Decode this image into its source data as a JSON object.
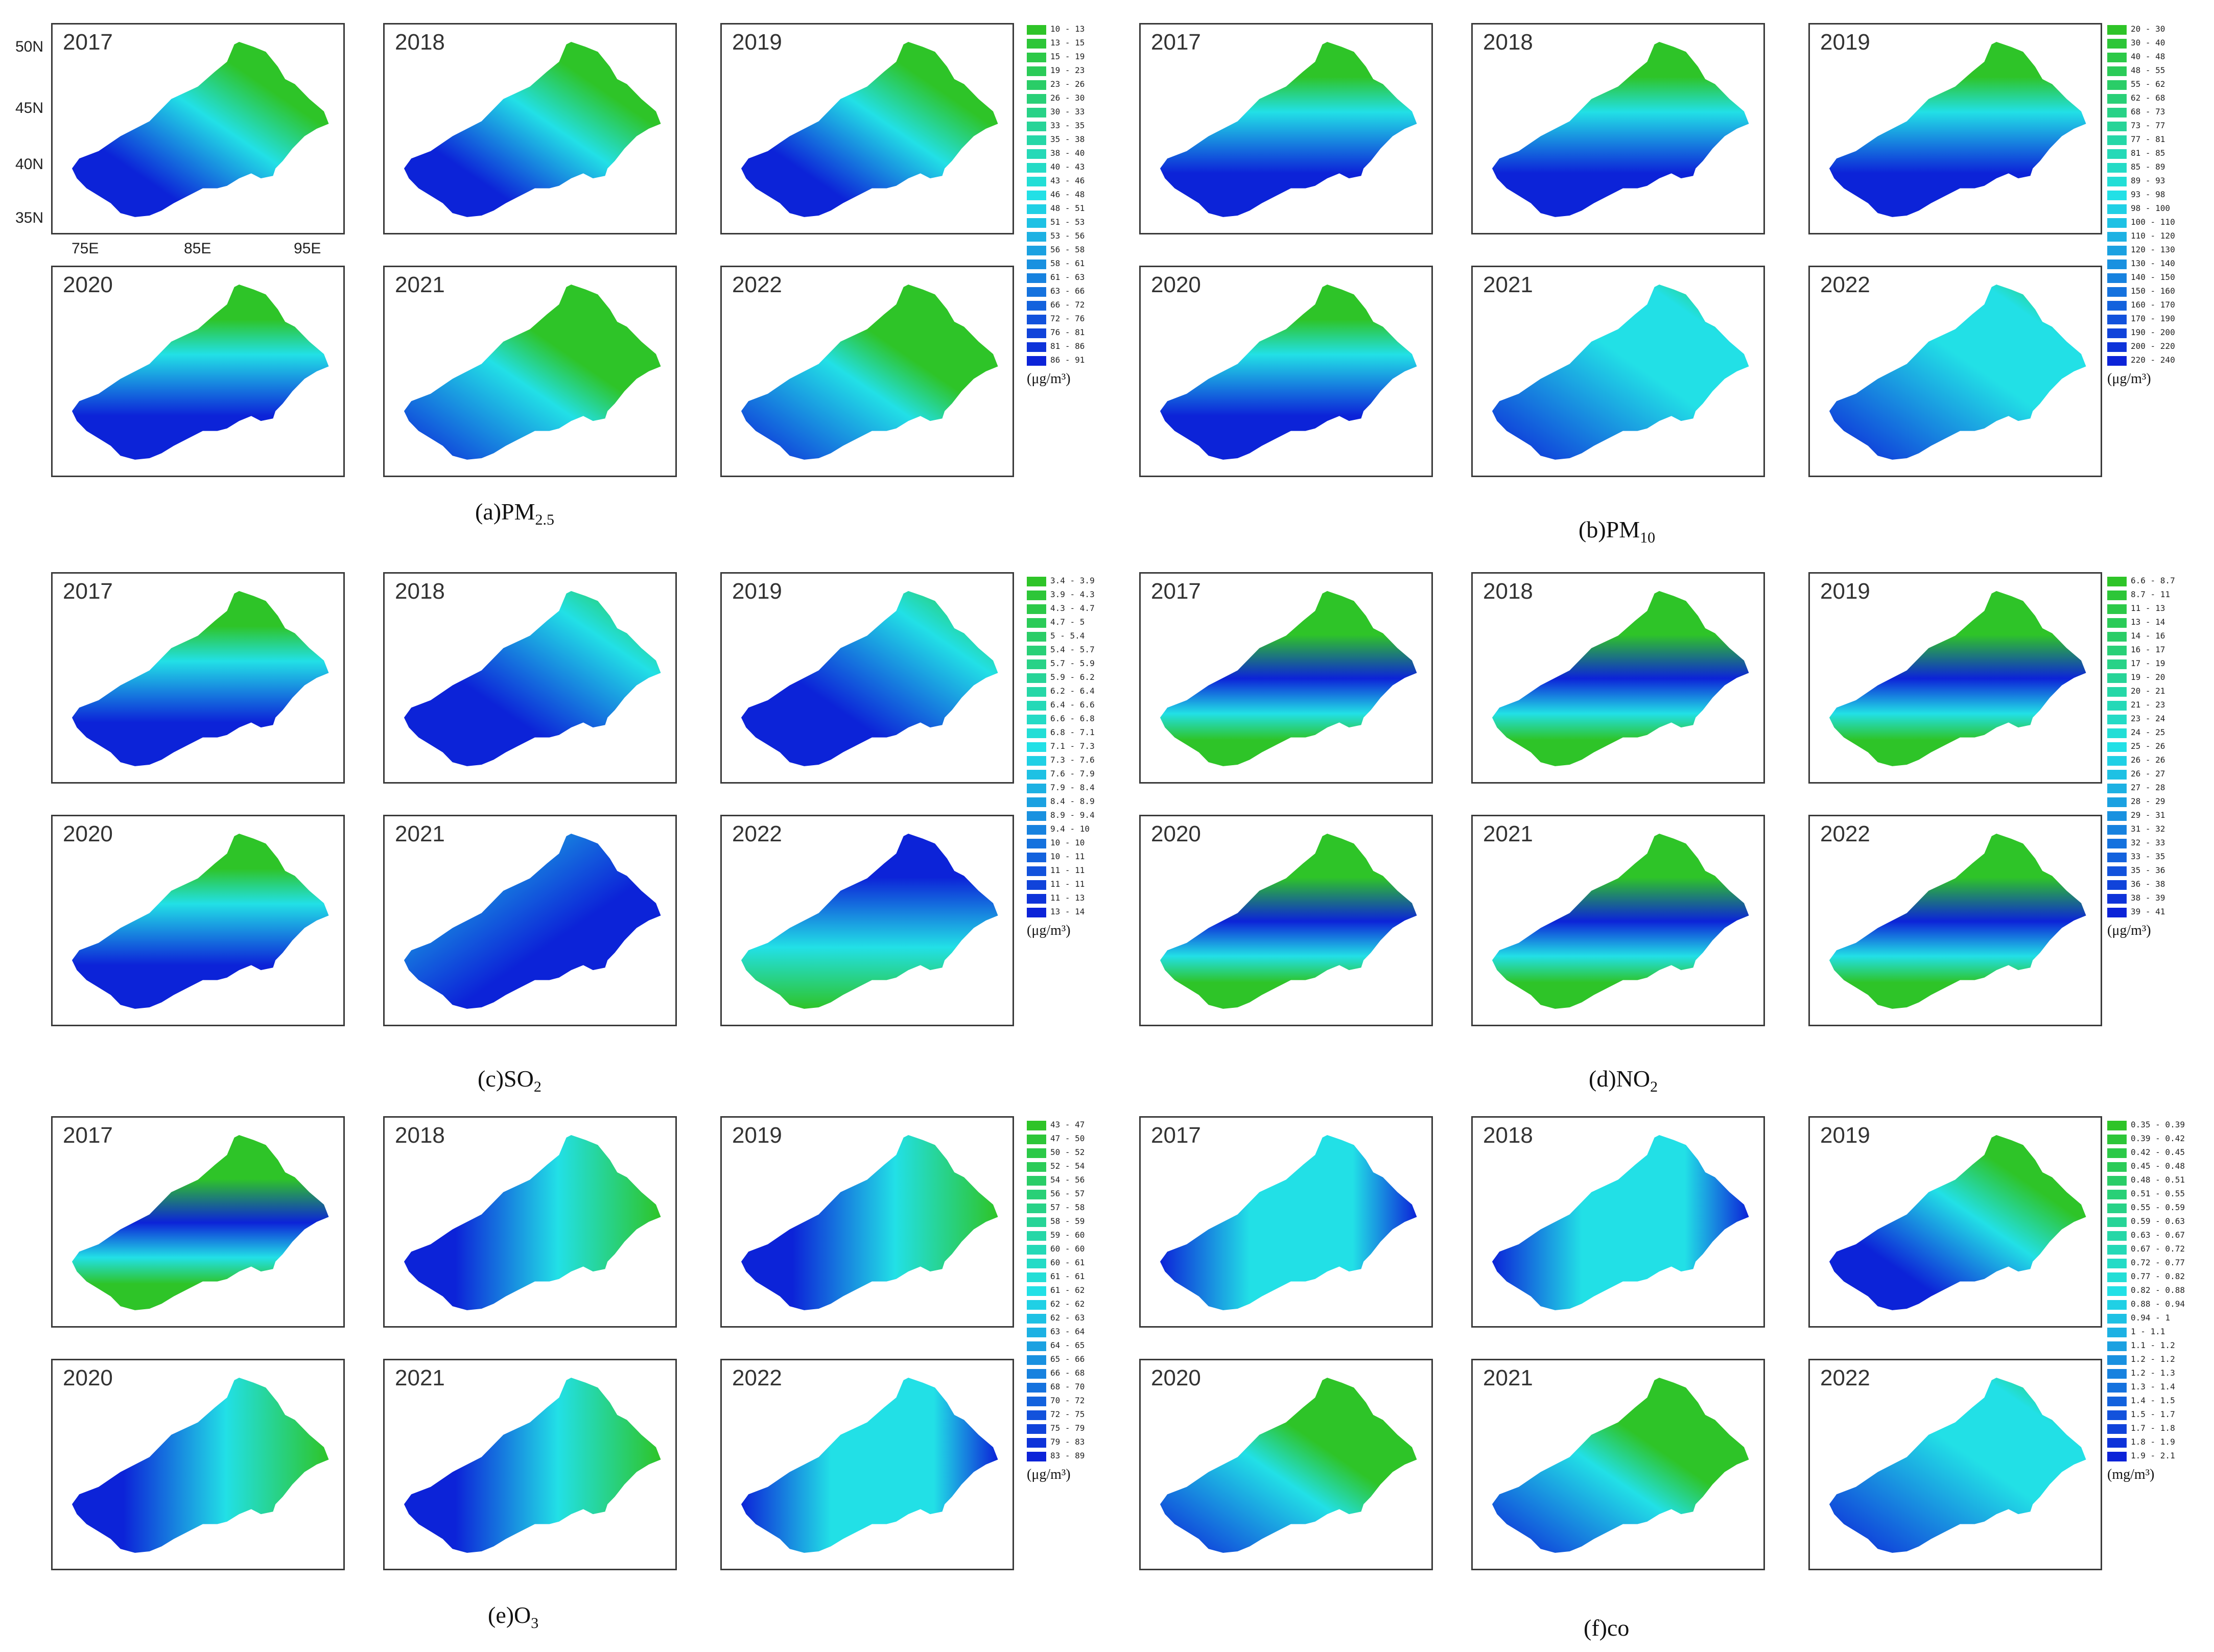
{
  "colors": {
    "green": "#2ec428",
    "cyan": "#22e0e6",
    "blue": "#0c23d8",
    "frame": "#3a3a3a"
  },
  "axes": {
    "lat": [
      "50N",
      "45N",
      "40N",
      "35N"
    ],
    "lon": [
      "75E",
      "85E",
      "95E"
    ]
  },
  "groups": [
    {
      "id": "a",
      "caption_prefix": "(a)PM",
      "caption_sub": "2.5",
      "unit": "(μg/m³)",
      "legend": [
        "10 - 13",
        "13 - 15",
        "15 - 19",
        "19 - 23",
        "23 - 26",
        "26 - 30",
        "30 - 33",
        "33 - 35",
        "35 - 38",
        "38 - 40",
        "40 - 43",
        "43 - 46",
        "46 - 48",
        "48 - 51",
        "51 - 53",
        "53 - 56",
        "56 - 58",
        "58 - 61",
        "61 - 63",
        "63 - 66",
        "66 - 72",
        "72 - 76",
        "76 - 81",
        "81 - 86",
        "86 - 91"
      ],
      "panels": [
        {
          "year": "2017",
          "pattern": "diag"
        },
        {
          "year": "2018",
          "pattern": "diag"
        },
        {
          "year": "2019",
          "pattern": "diag"
        },
        {
          "year": "2020",
          "pattern": "northsouth"
        },
        {
          "year": "2021",
          "pattern": "diagstrong"
        },
        {
          "year": "2022",
          "pattern": "diagstrong"
        }
      ]
    },
    {
      "id": "b",
      "caption_prefix": "(b)PM",
      "caption_sub": "10",
      "unit": "(μg/m³)",
      "legend": [
        "20 - 30",
        "30 - 40",
        "40 - 48",
        "48 - 55",
        "55 - 62",
        "62 - 68",
        "68 - 73",
        "73 - 77",
        "77 - 81",
        "81 - 85",
        "85 - 89",
        "89 - 93",
        "93 - 98",
        "98 - 100",
        "100 - 110",
        "110 - 120",
        "120 - 130",
        "130 - 140",
        "140 - 150",
        "150 - 160",
        "160 - 170",
        "170 - 190",
        "190 - 200",
        "200 - 220",
        "220 - 240"
      ],
      "panels": [
        {
          "year": "2017",
          "pattern": "northsouth"
        },
        {
          "year": "2018",
          "pattern": "northsouth"
        },
        {
          "year": "2019",
          "pattern": "northsouth"
        },
        {
          "year": "2020",
          "pattern": "northsouth"
        },
        {
          "year": "2021",
          "pattern": "southwest"
        },
        {
          "year": "2022",
          "pattern": "southwest"
        }
      ]
    },
    {
      "id": "c",
      "caption_prefix": "(c)SO",
      "caption_sub": "2",
      "unit": "(μg/m³)",
      "legend": [
        "3.4 - 3.9",
        "3.9 - 4.3",
        "4.3 - 4.7",
        "4.7 - 5",
        "5 - 5.4",
        "5.4 - 5.7",
        "5.7 - 5.9",
        "5.9 - 6.2",
        "6.2 - 6.4",
        "6.4 - 6.6",
        "6.6 - 6.8",
        "6.8 - 7.1",
        "7.1 - 7.3",
        "7.3 - 7.6",
        "7.6 - 7.9",
        "7.9 - 8.4",
        "8.4 - 8.9",
        "8.9 - 9.4",
        "9.4 - 10",
        "10 - 10",
        "10 - 11",
        "11 - 11",
        "11 - 11",
        "11 - 13",
        "13 - 14"
      ],
      "panels": [
        {
          "year": "2017",
          "pattern": "northsouth"
        },
        {
          "year": "2018",
          "pattern": "southblue"
        },
        {
          "year": "2019",
          "pattern": "southblue"
        },
        {
          "year": "2020",
          "pattern": "northsouth"
        },
        {
          "year": "2021",
          "pattern": "uniformblue"
        },
        {
          "year": "2022",
          "pattern": "southgreen"
        }
      ]
    },
    {
      "id": "d",
      "caption_prefix": "(d)NO",
      "caption_sub": "2",
      "unit": "(μg/m³)",
      "legend": [
        "6.6 - 8.7",
        "8.7 - 11",
        "11 - 13",
        "13 - 14",
        "14 - 16",
        "16 - 17",
        "17 - 19",
        "19 - 20",
        "20 - 21",
        "21 - 23",
        "23 - 24",
        "24 - 25",
        "25 - 26",
        "26 - 26",
        "26 - 27",
        "27 - 28",
        "28 - 29",
        "29 - 31",
        "31 - 32",
        "32 - 33",
        "33 - 35",
        "35 - 36",
        "36 - 38",
        "38 - 39",
        "39 - 41"
      ],
      "panels": [
        {
          "year": "2017",
          "pattern": "band"
        },
        {
          "year": "2018",
          "pattern": "band"
        },
        {
          "year": "2019",
          "pattern": "band"
        },
        {
          "year": "2020",
          "pattern": "band"
        },
        {
          "year": "2021",
          "pattern": "band"
        },
        {
          "year": "2022",
          "pattern": "band"
        }
      ]
    },
    {
      "id": "e",
      "caption_prefix": "(e)O",
      "caption_sub": "3",
      "unit": "(μg/m³)",
      "legend": [
        "43 - 47",
        "47 - 50",
        "50 - 52",
        "52 - 54",
        "54 - 56",
        "56 - 57",
        "57 - 58",
        "58 - 59",
        "59 - 60",
        "60 - 60",
        "60 - 61",
        "61 - 61",
        "61 - 62",
        "62 - 62",
        "62 - 63",
        "63 - 64",
        "64 - 65",
        "65 - 66",
        "66 - 68",
        "68 - 70",
        "70 - 72",
        "72 - 75",
        "75 - 79",
        "79 - 83",
        "83 - 89"
      ],
      "panels": [
        {
          "year": "2017",
          "pattern": "band"
        },
        {
          "year": "2018",
          "pattern": "westblue"
        },
        {
          "year": "2019",
          "pattern": "westblue"
        },
        {
          "year": "2020",
          "pattern": "westblue"
        },
        {
          "year": "2021",
          "pattern": "westblue"
        },
        {
          "year": "2022",
          "pattern": "uniformcyan"
        }
      ]
    },
    {
      "id": "f",
      "caption_prefix": "(f)co",
      "caption_sub": "",
      "unit": "(mg/m³)",
      "legend": [
        "0.35 - 0.39",
        "0.39 - 0.42",
        "0.42 - 0.45",
        "0.45 - 0.48",
        "0.48 - 0.51",
        "0.51 - 0.55",
        "0.55 - 0.59",
        "0.59 - 0.63",
        "0.63 - 0.67",
        "0.67 - 0.72",
        "0.72 - 0.77",
        "0.77 - 0.82",
        "0.82 - 0.88",
        "0.88 - 0.94",
        "0.94 - 1",
        "1 - 1.1",
        "1.1 - 1.2",
        "1.2 - 1.2",
        "1.2 - 1.3",
        "1.3 - 1.4",
        "1.4 - 1.5",
        "1.5 - 1.7",
        "1.7 - 1.8",
        "1.8 - 1.9",
        "1.9 - 2.1"
      ],
      "panels": [
        {
          "year": "2017",
          "pattern": "uniformcyan"
        },
        {
          "year": "2018",
          "pattern": "uniformcyan"
        },
        {
          "year": "2019",
          "pattern": "diag"
        },
        {
          "year": "2020",
          "pattern": "diagstrong"
        },
        {
          "year": "2021",
          "pattern": "diagstrong"
        },
        {
          "year": "2022",
          "pattern": "southwest"
        }
      ]
    }
  ]
}
